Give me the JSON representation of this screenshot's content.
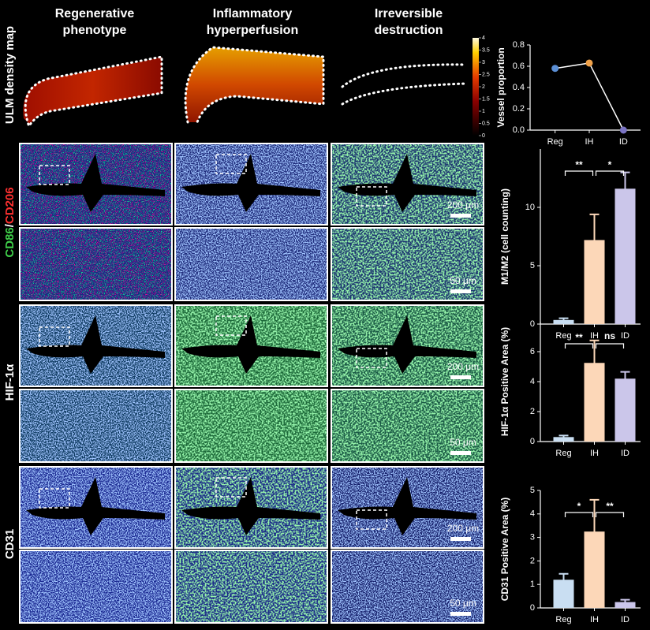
{
  "figure": {
    "columns": [
      [
        "Regenerative",
        "phenotype"
      ],
      [
        "Inflammatory",
        "hyperperfusion"
      ],
      [
        "Irreversible",
        "destruction"
      ]
    ],
    "rows": {
      "ulm": "ULM density map",
      "macro": {
        "m1": "CD86",
        "sep": "/",
        "m2": "CD206"
      },
      "hif": "HIF-1α",
      "cd31": "CD31"
    },
    "scale_bars": {
      "large": "200 μm",
      "small": "50 μm"
    },
    "colorbar": {
      "ticks": [
        0,
        0.5,
        1,
        1.5,
        2,
        2.5,
        3,
        3.5,
        4
      ]
    }
  },
  "chart_data": [
    {
      "type": "line",
      "ylabel": "Vessel proportion",
      "categories": [
        "Reg",
        "IH",
        "ID"
      ],
      "values": [
        0.58,
        0.63,
        0.0
      ],
      "point_colors": [
        "#5b8fd6",
        "#f0a24a",
        "#7b74c4"
      ],
      "line_color": "#ffffff",
      "ylim": [
        0,
        0.8
      ],
      "yticks": [
        {
          "value": 0,
          "label": "0.0"
        },
        0.2,
        0.4,
        0.6,
        0.8
      ]
    },
    {
      "type": "bar",
      "ylabel": "M1/M2 (cell counting)",
      "categories": [
        "Reg",
        "IH",
        "ID"
      ],
      "values": [
        0.35,
        7.2,
        11.6
      ],
      "errors": [
        0.15,
        2.2,
        1.4
      ],
      "colors": [
        "#c9def2",
        "#fcd7b8",
        "#cbc6ea"
      ],
      "ylim": [
        0,
        15
      ],
      "yticks": [
        0,
        5,
        10
      ],
      "significance": [
        {
          "pair": [
            "Reg",
            "IH"
          ],
          "label": "**"
        },
        {
          "pair": [
            "IH",
            "ID"
          ],
          "label": "*"
        }
      ]
    },
    {
      "type": "bar",
      "ylabel": "HIF-1α Positive Area (%)",
      "categories": [
        "Reg",
        "IH",
        "ID"
      ],
      "values": [
        0.3,
        5.25,
        4.2
      ],
      "errors": [
        0.1,
        1.5,
        0.45
      ],
      "colors": [
        "#c9def2",
        "#fcd7b8",
        "#cbc6ea"
      ],
      "ylim": [
        0,
        8
      ],
      "yticks": [
        0,
        2,
        4,
        6
      ],
      "significance": [
        {
          "pair": [
            "Reg",
            "IH"
          ],
          "label": "**"
        },
        {
          "pair": [
            "IH",
            "ID"
          ],
          "label": "ns"
        }
      ]
    },
    {
      "type": "bar",
      "ylabel": "CD31 Positive Area (%)",
      "categories": [
        "Reg",
        "IH",
        "ID"
      ],
      "values": [
        1.2,
        3.25,
        0.25
      ],
      "errors": [
        0.25,
        1.35,
        0.1
      ],
      "colors": [
        "#c9def2",
        "#fcd7b8",
        "#cbc6ea"
      ],
      "ylim": [
        0,
        5
      ],
      "yticks": [
        0,
        1,
        2,
        3,
        4,
        5
      ],
      "significance": [
        {
          "pair": [
            "Reg",
            "IH"
          ],
          "label": "*"
        },
        {
          "pair": [
            "IH",
            "ID"
          ],
          "label": "**"
        }
      ]
    }
  ]
}
